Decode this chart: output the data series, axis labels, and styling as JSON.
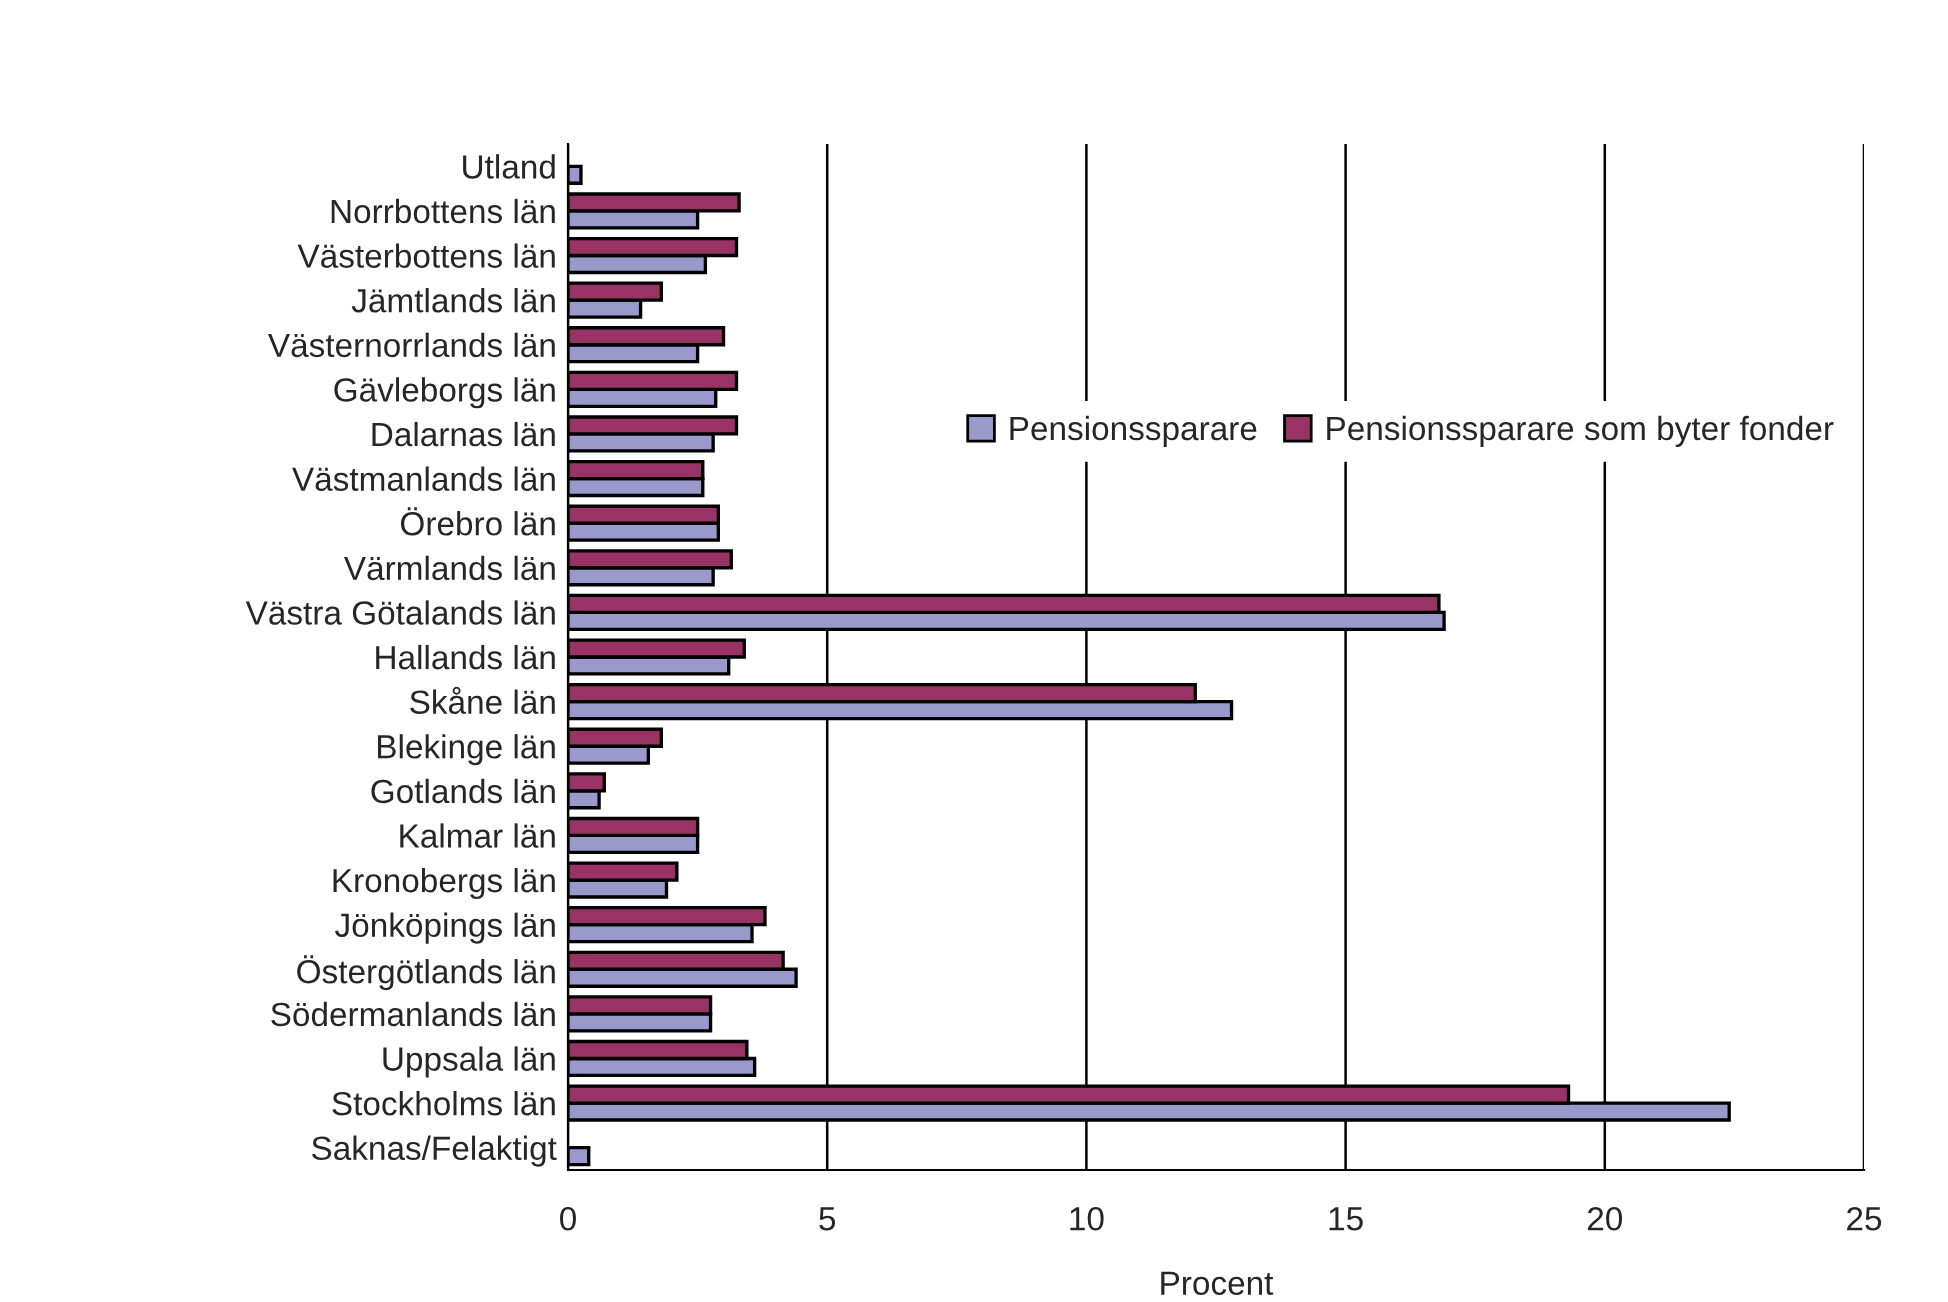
{
  "chart_data": {
    "type": "bar",
    "orientation": "horizontal",
    "xlabel": "Procent",
    "categories": [
      "Utland",
      "Norrbottens län",
      "Västerbottens län",
      "Jämtlands län",
      "Västernorrlands län",
      "Gävleborgs län",
      "Dalarnas län",
      "Västmanlands län",
      "Örebro län",
      "Värmlands län",
      "Västra Götalands län",
      "Hallands län",
      "Skåne län",
      "Blekinge län",
      "Gotlands län",
      "Kalmar län",
      "Kronobergs län",
      "Jönköpings län",
      "Östergötlands län",
      "Södermanlands län",
      "Uppsala län",
      "Stockholms län",
      "Saknas/Felaktigt"
    ],
    "series": [
      {
        "name": "Pensionssparare",
        "color": "#9999cc",
        "values": [
          0.25,
          2.5,
          2.65,
          1.4,
          2.5,
          2.85,
          2.8,
          2.6,
          2.9,
          2.8,
          16.9,
          3.1,
          12.8,
          1.55,
          0.6,
          2.5,
          1.9,
          3.55,
          4.4,
          2.75,
          3.6,
          22.4,
          0.4
        ]
      },
      {
        "name": "Pensionssparare som byter fonder",
        "color": "#993366",
        "values": [
          null,
          3.3,
          3.25,
          1.8,
          3.0,
          3.25,
          3.25,
          2.6,
          2.9,
          3.15,
          16.8,
          3.4,
          12.1,
          1.8,
          0.7,
          2.5,
          2.1,
          3.8,
          4.15,
          2.75,
          3.45,
          19.3,
          null
        ]
      }
    ],
    "xlim": [
      0,
      25
    ],
    "xticks": [
      0,
      5,
      10,
      15,
      20,
      25
    ],
    "grid": "x",
    "legend": "right"
  }
}
